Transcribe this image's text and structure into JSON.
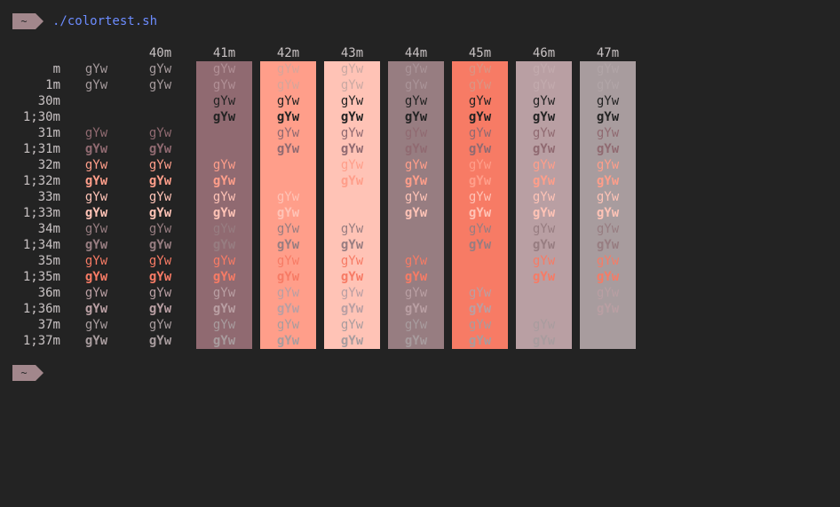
{
  "terminal": {
    "prompt_symbol": "~",
    "command": "./colortest.sh",
    "sample_text": "gYw"
  },
  "columns": [
    "",
    "40m",
    "41m",
    "42m",
    "43m",
    "44m",
    "45m",
    "46m",
    "47m"
  ],
  "column_backgrounds": [
    null,
    null,
    "#906a71",
    "#ff9e8a",
    "#ffc3b6",
    "#977d81",
    "#f77b65",
    "#b99fa3",
    "#a89c9e"
  ],
  "rows": [
    {
      "label": "m",
      "colors": [
        "#a59a9c",
        "#a59a9c",
        "#b08f95",
        "#d6a59a",
        "#c9a9a3",
        "#a99397",
        "#d99584",
        "#c2aaad",
        "#b1a5a7"
      ],
      "bold": false
    },
    {
      "label": "1m",
      "colors": [
        "#a59a9c",
        "#a59a9c",
        "#b08f95",
        "#d6a59a",
        "#c9a9a3",
        "#a99397",
        "#d99584",
        "#c2aaad",
        "#b1a5a7"
      ],
      "bold": false
    },
    {
      "label": "30m",
      "colors": [
        "#232323",
        "#232323",
        "#232323",
        "#232323",
        "#232323",
        "#232323",
        "#232323",
        "#232323",
        "#232323"
      ],
      "bold": false,
      "hide": [
        0,
        1
      ]
    },
    {
      "label": "1;30m",
      "colors": [
        "#232323",
        "#232323",
        "#232323",
        "#232323",
        "#232323",
        "#232323",
        "#232323",
        "#232323",
        "#232323"
      ],
      "bold": false,
      "hide": [
        0,
        1
      ]
    },
    {
      "label": "31m",
      "colors": [
        "#906a71",
        "#906a71",
        "#906a71",
        "#906a71",
        "#906a71",
        "#906a71",
        "#906a71",
        "#906a71",
        "#906a71"
      ],
      "bold": false,
      "hide": [
        2
      ]
    },
    {
      "label": "1;31m",
      "colors": [
        "#906a71",
        "#906a71",
        "#906a71",
        "#906a71",
        "#906a71",
        "#906a71",
        "#906a71",
        "#906a71",
        "#906a71"
      ],
      "bold": false,
      "hide": [
        2
      ]
    },
    {
      "label": "32m",
      "colors": [
        "#ff9e8a",
        "#ff9e8a",
        "#ff9e8a",
        "#ff9e8a",
        "#ff9e8a",
        "#ff9e8a",
        "#ff9e8a",
        "#ff9e8a",
        "#ff9e8a"
      ],
      "bold": false,
      "hide": [
        3
      ]
    },
    {
      "label": "1;32m",
      "colors": [
        "#ff9e8a",
        "#ff9e8a",
        "#ff9e8a",
        "#ff9e8a",
        "#ff9e8a",
        "#ff9e8a",
        "#ff9e8a",
        "#ff9e8a",
        "#ff9e8a"
      ],
      "bold": false,
      "hide": [
        3
      ]
    },
    {
      "label": "33m",
      "colors": [
        "#ffc3b6",
        "#ffc3b6",
        "#ffc3b6",
        "#ffc3b6",
        "#ffc3b6",
        "#ffc3b6",
        "#ffc3b6",
        "#ffc3b6",
        "#ffc3b6"
      ],
      "bold": false,
      "hide": [
        4
      ]
    },
    {
      "label": "1;33m",
      "colors": [
        "#ffc3b6",
        "#ffc3b6",
        "#ffc3b6",
        "#ffc3b6",
        "#ffc3b6",
        "#ffc3b6",
        "#ffc3b6",
        "#ffc3b6",
        "#ffc3b6"
      ],
      "bold": false,
      "hide": [
        4
      ]
    },
    {
      "label": "34m",
      "colors": [
        "#977d81",
        "#977d81",
        "#977d81",
        "#977d81",
        "#977d81",
        "#977d81",
        "#977d81",
        "#977d81",
        "#977d81"
      ],
      "bold": false,
      "hide": [
        5
      ]
    },
    {
      "label": "1;34m",
      "colors": [
        "#977d81",
        "#977d81",
        "#977d81",
        "#977d81",
        "#977d81",
        "#977d81",
        "#977d81",
        "#977d81",
        "#977d81"
      ],
      "bold": false,
      "hide": [
        5
      ]
    },
    {
      "label": "35m",
      "colors": [
        "#f77b65",
        "#f77b65",
        "#f77b65",
        "#f77b65",
        "#f77b65",
        "#f77b65",
        "#f77b65",
        "#f77b65",
        "#f77b65"
      ],
      "bold": false,
      "hide": [
        6
      ]
    },
    {
      "label": "1;35m",
      "colors": [
        "#f77b65",
        "#f77b65",
        "#f77b65",
        "#f77b65",
        "#f77b65",
        "#f77b65",
        "#f77b65",
        "#f77b65",
        "#f77b65"
      ],
      "bold": false,
      "hide": [
        6
      ]
    },
    {
      "label": "36m",
      "colors": [
        "#b99fa3",
        "#b99fa3",
        "#b99fa3",
        "#b99fa3",
        "#b99fa3",
        "#b99fa3",
        "#b99fa3",
        "#b99fa3",
        "#b99fa3"
      ],
      "bold": false,
      "hide": [
        7
      ]
    },
    {
      "label": "1;36m",
      "colors": [
        "#b99fa3",
        "#b99fa3",
        "#b99fa3",
        "#b99fa3",
        "#b99fa3",
        "#b99fa3",
        "#b99fa3",
        "#b99fa3",
        "#b99fa3"
      ],
      "bold": false,
      "hide": [
        7
      ]
    },
    {
      "label": "37m",
      "colors": [
        "#a89c9e",
        "#a89c9e",
        "#a89c9e",
        "#a89c9e",
        "#a89c9e",
        "#a89c9e",
        "#a89c9e",
        "#a89c9e",
        "#a89c9e"
      ],
      "bold": false,
      "hide": [
        8
      ]
    },
    {
      "label": "1;37m",
      "colors": [
        "#a89c9e",
        "#a89c9e",
        "#a89c9e",
        "#a89c9e",
        "#a89c9e",
        "#a89c9e",
        "#a89c9e",
        "#a89c9e",
        "#a89c9e"
      ],
      "bold": false,
      "hide": [
        8
      ]
    }
  ]
}
